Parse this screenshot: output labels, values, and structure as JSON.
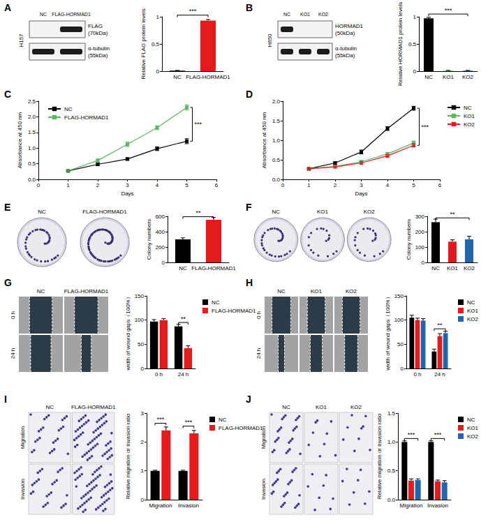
{
  "chart_data": [
    {
      "panel": "A",
      "type": "bar",
      "categories": [
        "NC",
        "FLAG-HORMAD1"
      ],
      "values": [
        0.01,
        0.93
      ],
      "errors": [
        0.005,
        0.02
      ],
      "colors": [
        "#000000",
        "#e41a1c"
      ],
      "ylabel": "Relative FLAG protein levels",
      "ylim": [
        0,
        1
      ],
      "yticks": [
        0,
        0.5,
        1
      ],
      "annotations": [
        {
          "text": "***",
          "between": [
            "NC",
            "FLAG-HORMAD1"
          ],
          "y": 1.03
        }
      ]
    },
    {
      "panel": "B",
      "type": "bar",
      "categories": [
        "NC",
        "KO1",
        "KO2"
      ],
      "values": [
        0.97,
        0.01,
        0.01
      ],
      "errors": [
        0.02,
        0.005,
        0.005
      ],
      "colors": [
        "#000000",
        "#5cb85c",
        "#2166ac"
      ],
      "ylabel": "Relative HORMAD1 protein levels",
      "ylim": [
        0,
        1
      ],
      "yticks": [
        0,
        0.5,
        1
      ],
      "annotations": [
        {
          "text": "***",
          "between": [
            "NC",
            "KO2"
          ],
          "y": 1.05
        }
      ]
    },
    {
      "panel": "C",
      "type": "line",
      "x": [
        1,
        2,
        3,
        4,
        5
      ],
      "series": [
        {
          "name": "NC",
          "color": "#000000",
          "marker": "square",
          "line_style": "solid",
          "values": [
            0.27,
            0.48,
            0.65,
            0.98,
            1.22
          ],
          "errors": [
            0.02,
            0.04,
            0.04,
            0.06,
            0.08
          ]
        },
        {
          "name": "FLAG-HORMAD1",
          "color": "#5cb85c",
          "marker": "square",
          "line_style": "solid",
          "values": [
            0.27,
            0.6,
            1.12,
            1.65,
            2.3
          ],
          "errors": [
            0.02,
            0.05,
            0.07,
            0.06,
            0.08
          ]
        }
      ],
      "xlabel": "Days",
      "ylabel": "Absorbance at 450 nm",
      "xlim": [
        0,
        6
      ],
      "xticks": [
        0,
        1,
        2,
        3,
        4,
        5,
        6
      ],
      "ylim": [
        0,
        2.5
      ],
      "yticks": [
        {
          "value": 0,
          "label": "0.0"
        },
        0.5,
        {
          "value": 1,
          "label": "1.0"
        },
        1.5,
        {
          "value": 2,
          "label": "2.0"
        },
        2.5
      ],
      "legend": "upper left",
      "annotations": [
        {
          "text": "***",
          "x": 5,
          "y": [
            1.22,
            2.3
          ]
        }
      ]
    },
    {
      "panel": "D",
      "type": "line",
      "x": [
        1,
        2,
        3,
        4,
        5
      ],
      "series": [
        {
          "name": "NC",
          "color": "#000000",
          "marker": "square",
          "line_style": "solid",
          "values": [
            0.27,
            0.42,
            0.7,
            1.3,
            1.82
          ],
          "errors": [
            0.02,
            0.03,
            0.05,
            0.05,
            0.05
          ]
        },
        {
          "name": "KO1",
          "color": "#5cb85c",
          "marker": "square",
          "line_style": "solid",
          "values": [
            0.27,
            0.33,
            0.45,
            0.65,
            0.93
          ],
          "errors": [
            0.02,
            0.02,
            0.03,
            0.04,
            0.05
          ]
        },
        {
          "name": "KO2",
          "color": "#e41a1c",
          "marker": "square",
          "line_style": "solid",
          "values": [
            0.27,
            0.32,
            0.42,
            0.6,
            0.87
          ],
          "errors": [
            0.02,
            0.02,
            0.03,
            0.03,
            0.04
          ]
        }
      ],
      "xlabel": "Days",
      "ylabel": "Absorbance at 450 nm",
      "xlim": [
        0,
        6
      ],
      "xticks": [
        0,
        1,
        2,
        3,
        4,
        5,
        6
      ],
      "ylim": [
        0,
        2
      ],
      "yticks": [
        {
          "value": 0,
          "label": "0.0"
        },
        0.5,
        {
          "value": 1,
          "label": "1.0"
        },
        1.5,
        {
          "value": 2,
          "label": "2.0"
        }
      ],
      "legend": "upper right",
      "annotations": [
        {
          "text": "***",
          "x": 5,
          "y": [
            0.87,
            1.82
          ]
        }
      ]
    },
    {
      "panel": "E",
      "type": "bar",
      "categories": [
        "NC",
        "FLAG-HORMAD1"
      ],
      "values": [
        300,
        555
      ],
      "errors": [
        20,
        30
      ],
      "colors": [
        "#000000",
        "#e41a1c"
      ],
      "ylabel": "Colony numbers",
      "ylim": [
        0,
        600
      ],
      "yticks": [
        0,
        200,
        400,
        600
      ],
      "annotations": [
        {
          "text": "**",
          "between": [
            "NC",
            "FLAG-HORMAD1"
          ],
          "y": 595
        }
      ]
    },
    {
      "panel": "F",
      "type": "bar",
      "categories": [
        "NC",
        "KO1",
        "KO2"
      ],
      "values": [
        262,
        135,
        150
      ],
      "errors": [
        20,
        12,
        20
      ],
      "colors": [
        "#000000",
        "#e41a1c",
        "#2166ac"
      ],
      "ylabel": "Colony numbers",
      "ylim": [
        0,
        300
      ],
      "yticks": [
        0,
        100,
        200,
        300
      ],
      "annotations": [
        {
          "text": "**",
          "between": [
            "NC",
            "KO2"
          ],
          "y": 290
        }
      ]
    },
    {
      "panel": "G",
      "type": "bar",
      "categories": [
        "0 h",
        "24 h"
      ],
      "series": [
        {
          "name": "NC",
          "color": "#000000",
          "values": [
            97,
            87
          ],
          "errors": [
            4,
            4
          ]
        },
        {
          "name": "FLAG-HORMAD1",
          "color": "#e41a1c",
          "values": [
            100,
            42
          ],
          "errors": [
            3,
            5
          ]
        }
      ],
      "ylabel": "width of wound gaps（100%）",
      "ylim": [
        0,
        150
      ],
      "yticks": [
        0,
        50,
        100,
        150
      ],
      "legend": "right",
      "annotations": [
        {
          "text": "**",
          "category": "24 h",
          "y": 95
        }
      ]
    },
    {
      "panel": "H",
      "type": "bar",
      "categories": [
        "0 h",
        "24 h"
      ],
      "series": [
        {
          "name": "NC",
          "color": "#000000",
          "values": [
            105,
            35
          ],
          "errors": [
            5,
            5
          ]
        },
        {
          "name": "KO1",
          "color": "#e41a1c",
          "values": [
            100,
            67
          ],
          "errors": [
            4,
            5
          ]
        },
        {
          "name": "KO2",
          "color": "#2166ac",
          "values": [
            99,
            73
          ],
          "errors": [
            4,
            4
          ]
        }
      ],
      "ylabel": "width of wound gaps（100%）",
      "ylim": [
        0,
        150
      ],
      "yticks": [
        0,
        50,
        100,
        150
      ],
      "legend": "right",
      "annotations": [
        {
          "text": "**",
          "category": "24 h",
          "y": 82
        }
      ]
    },
    {
      "panel": "I",
      "type": "bar",
      "categories": [
        "Migration",
        "Invasion"
      ],
      "series": [
        {
          "name": "NC",
          "color": "#000000",
          "values": [
            1,
            1
          ],
          "errors": [
            0.02,
            0.02
          ]
        },
        {
          "name": "FLAG-HORMAD1",
          "color": "#e41a1c",
          "values": [
            2.4,
            2.3
          ],
          "errors": [
            0.12,
            0.1
          ]
        }
      ],
      "ylabel": "Relative migration or invasion ratio",
      "ylim": [
        0,
        3
      ],
      "yticks": [
        0,
        1,
        2,
        3
      ],
      "legend": "right",
      "annotations": [
        {
          "text": "***",
          "category": "Migration",
          "y": 2.65
        },
        {
          "text": "***",
          "category": "Invasion",
          "y": 2.55
        }
      ]
    },
    {
      "panel": "J",
      "type": "bar",
      "categories": [
        "Migration",
        "Invasion"
      ],
      "series": [
        {
          "name": "NC",
          "color": "#000000",
          "values": [
            1,
            1
          ],
          "errors": [
            0.02,
            0.02
          ]
        },
        {
          "name": "KO1",
          "color": "#e41a1c",
          "values": [
            0.33,
            0.32
          ],
          "errors": [
            0.03,
            0.02
          ]
        },
        {
          "name": "KO2",
          "color": "#2166ac",
          "values": [
            0.34,
            0.3
          ],
          "errors": [
            0.02,
            0.03
          ]
        }
      ],
      "ylabel": "Relative migration or invasion ratio",
      "ylim": [
        0,
        1.5
      ],
      "yticks": [
        {
          "value": 0,
          "label": "0.0"
        },
        0.5,
        {
          "value": 1,
          "label": "1.0"
        },
        1.5
      ],
      "legend": "right",
      "annotations": [
        {
          "text": "***",
          "category": "Migration",
          "y": 1.06
        },
        {
          "text": "***",
          "category": "Invasion",
          "y": 1.06
        }
      ]
    }
  ],
  "figures": [
    {
      "panel": "A",
      "kind": "blot",
      "cell_line": "H157",
      "lanes": [
        "NC",
        "FLAG-HORMAD1"
      ],
      "bands": [
        {
          "name": "FLAG",
          "size": "(70kDa)",
          "present": [
            false,
            true
          ]
        },
        {
          "name": "α-tubulin",
          "size": "(55kDa)",
          "present": [
            true,
            true
          ]
        }
      ]
    },
    {
      "panel": "B",
      "kind": "blot",
      "cell_line": "H650",
      "lanes": [
        "NC",
        "KO1",
        "KO2"
      ],
      "bands": [
        {
          "name": "HORMAD1",
          "size": "(50kDa)",
          "present": [
            true,
            false,
            false
          ]
        },
        {
          "name": "α-tubulin",
          "size": "(55kDa)",
          "present": [
            true,
            true,
            true
          ]
        }
      ]
    },
    {
      "panel": "E",
      "kind": "plates",
      "labels": [
        "NC",
        "FLAG-HORMAD1"
      ]
    },
    {
      "panel": "F",
      "kind": "plates",
      "labels": [
        "NC",
        "KO1",
        "KO2"
      ]
    },
    {
      "panel": "G",
      "kind": "wound",
      "columns": [
        "NC",
        "FLAG-HORMAD1"
      ],
      "rows": [
        "0 h",
        "24 h"
      ]
    },
    {
      "panel": "H",
      "kind": "wound",
      "columns": [
        "NC",
        "KO1",
        "KO2"
      ],
      "rows": [
        "0 h",
        "24 h"
      ]
    },
    {
      "panel": "I",
      "kind": "transwell",
      "columns": [
        "NC",
        "FLAG-HORMAD1"
      ],
      "rows": [
        "Migration",
        "Invasion"
      ]
    },
    {
      "panel": "J",
      "kind": "transwell",
      "columns": [
        "NC",
        "KO1",
        "KO2"
      ],
      "rows": [
        "Migration",
        "Invasion"
      ]
    }
  ]
}
